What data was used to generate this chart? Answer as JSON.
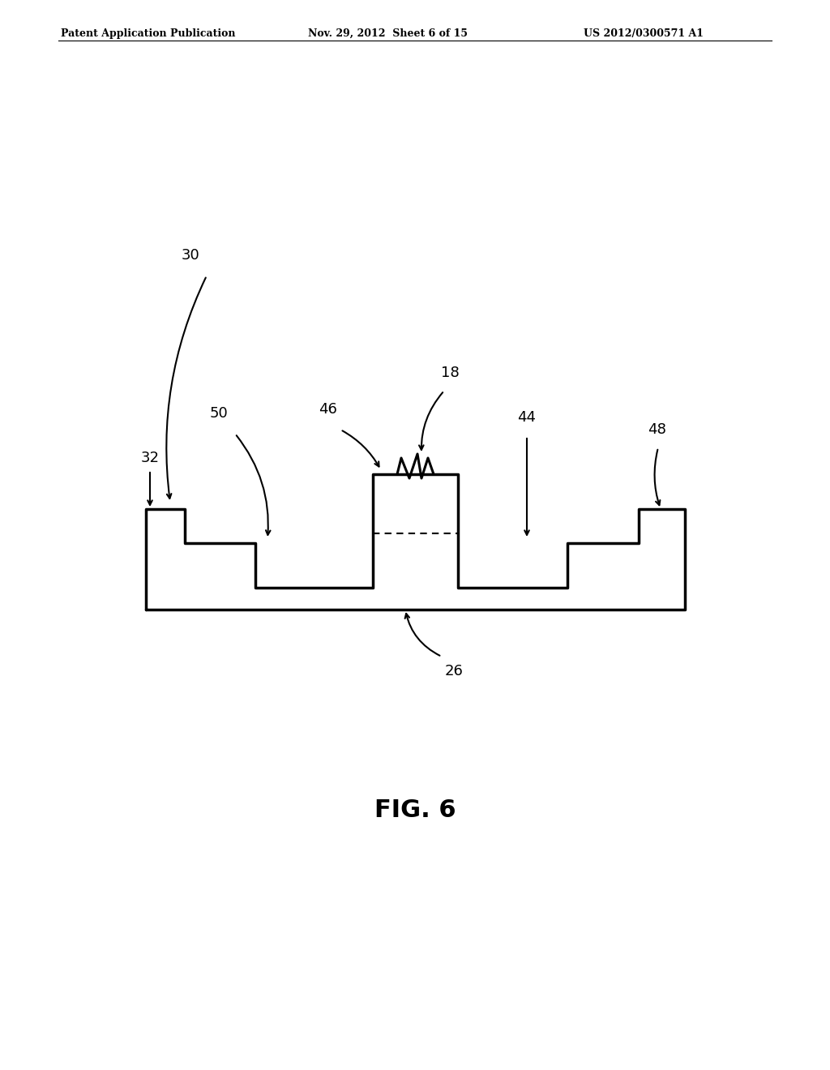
{
  "bg_color": "#ffffff",
  "header_left": "Patent Application Publication",
  "header_mid": "Nov. 29, 2012  Sheet 6 of 15",
  "header_right": "US 2012/0300571 A1",
  "fig_label": "FIG. 6",
  "label_30": "30",
  "label_32": "32",
  "label_50": "50",
  "label_46": "46",
  "label_18": "18",
  "label_44": "44",
  "label_48": "48",
  "label_26": "26"
}
